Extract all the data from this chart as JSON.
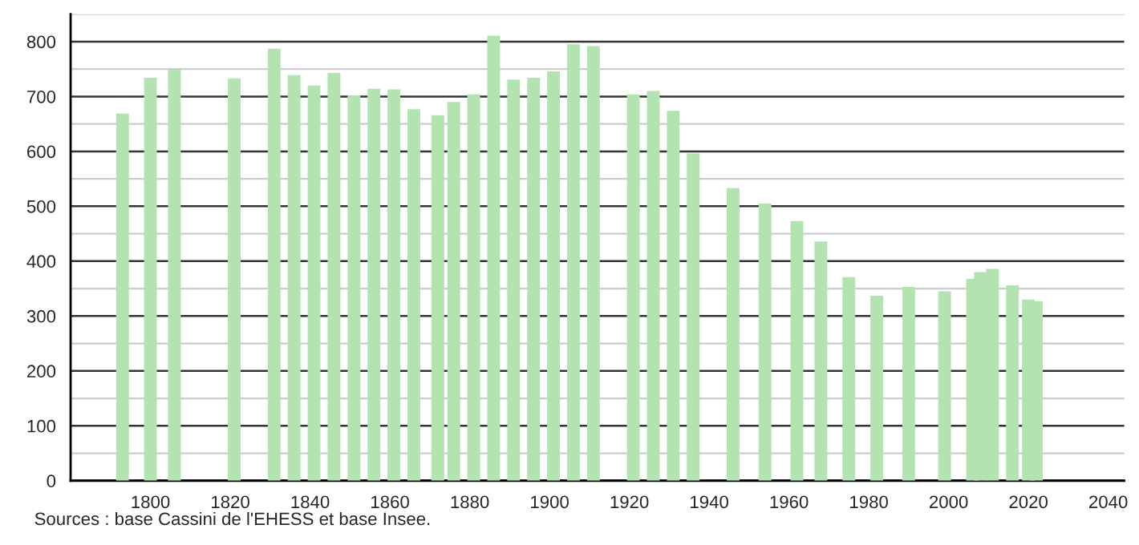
{
  "chart_data": {
    "type": "bar",
    "color": "#b3e3b0",
    "x": [
      1793,
      1800,
      1806,
      1821,
      1831,
      1836,
      1841,
      1846,
      1851,
      1856,
      1861,
      1866,
      1872,
      1876,
      1881,
      1886,
      1891,
      1896,
      1901,
      1906,
      1911,
      1921,
      1926,
      1931,
      1936,
      1946,
      1954,
      1962,
      1968,
      1975,
      1982,
      1990,
      1999,
      2006,
      2008,
      2011,
      2016,
      2020,
      2022
    ],
    "values": [
      669,
      734,
      749,
      733,
      787,
      739,
      720,
      743,
      702,
      714,
      713,
      677,
      666,
      690,
      704,
      811,
      731,
      734,
      746,
      795,
      792,
      704,
      710,
      674,
      596,
      533,
      505,
      473,
      436,
      371,
      337,
      353,
      345,
      368,
      380,
      386,
      356,
      330,
      327
    ],
    "xlim": [
      1780,
      2044
    ],
    "xticks": [
      1800,
      1820,
      1840,
      1860,
      1880,
      1900,
      1920,
      1940,
      1960,
      1980,
      2000,
      2020,
      2040
    ],
    "ylim": [
      0,
      850
    ],
    "yticks": [
      0,
      100,
      200,
      300,
      400,
      500,
      600,
      700,
      800
    ],
    "grid": "y",
    "legend": false,
    "annotations": [
      "Sources : base Cassini de l'EHESS et base Insee."
    ]
  }
}
